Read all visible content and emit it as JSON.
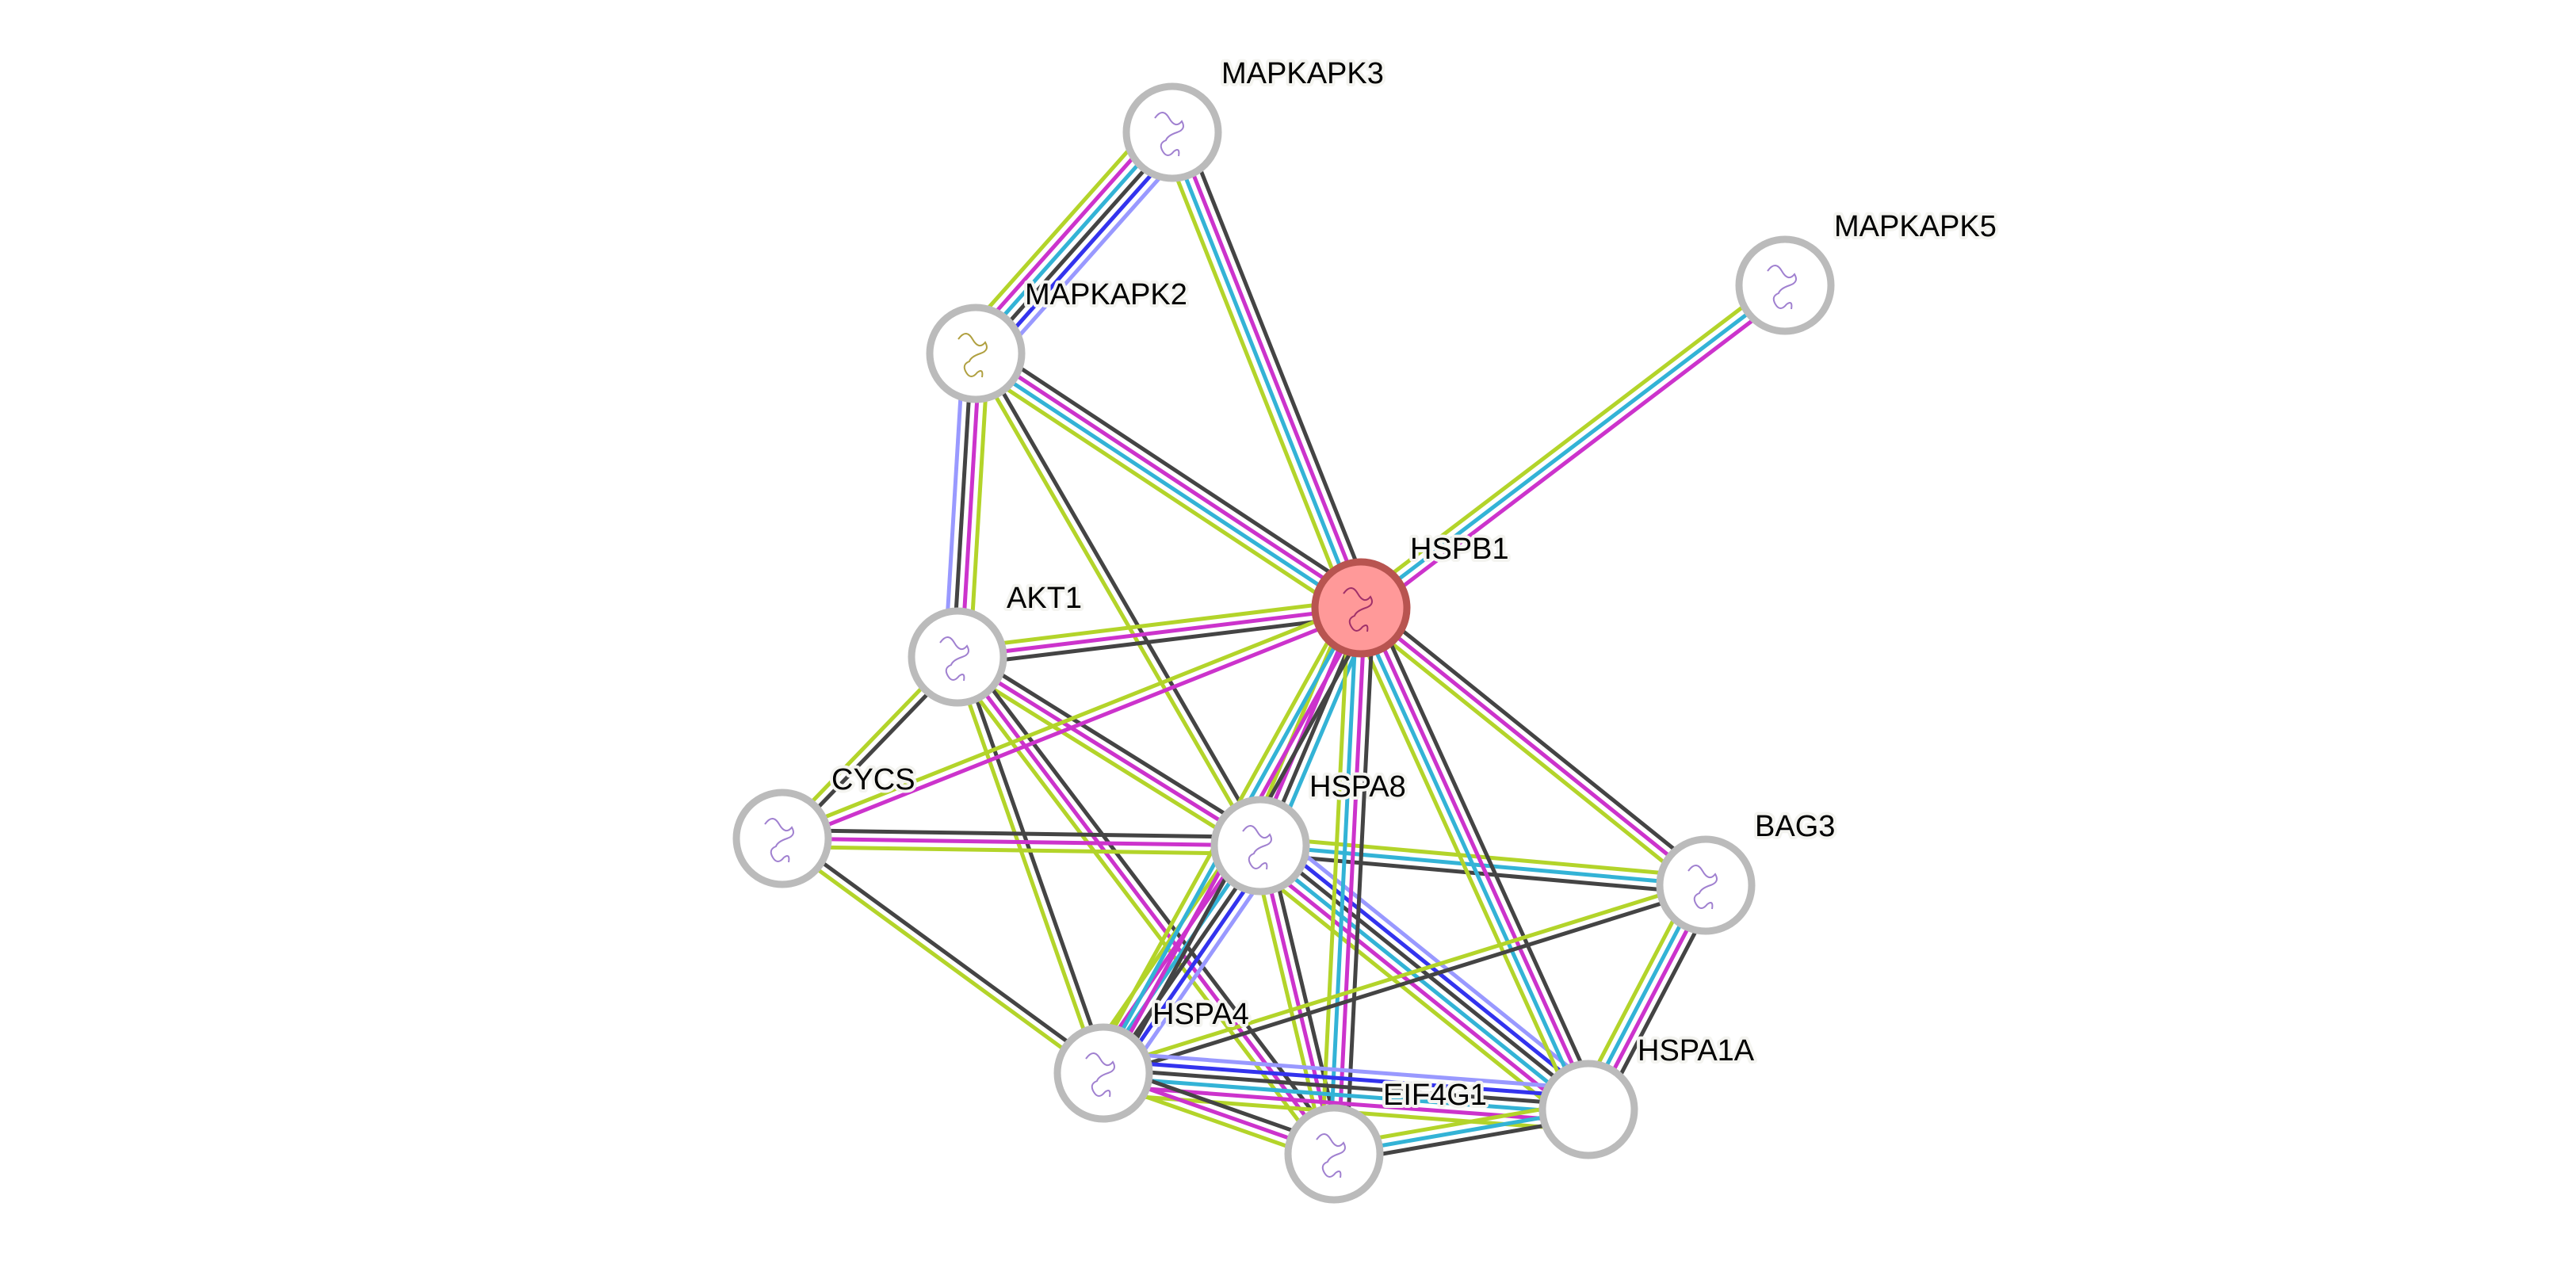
{
  "evidence_colors": {
    "databases": "#33b3d6",
    "experiments": "#cc33cc",
    "textmining": "#b3d42a",
    "coexpression": "#444444",
    "cooccurrence": "#3333ee",
    "homology": "#9999ff"
  },
  "query_node": {
    "fill": "#ff9999",
    "stroke": "#b85450"
  },
  "nodes": [
    {
      "id": "MAPKAPK3"
    },
    {
      "id": "MAPKAPK5"
    },
    {
      "id": "MAPKAPK2"
    },
    {
      "id": "HSPB1",
      "query": true
    },
    {
      "id": "AKT1"
    },
    {
      "id": "CYCS"
    },
    {
      "id": "HSPA8"
    },
    {
      "id": "BAG3"
    },
    {
      "id": "HSPA4"
    },
    {
      "id": "HSPA1A"
    },
    {
      "id": "EIF4G1"
    }
  ],
  "edges": [
    {
      "source": "MAPKAPK3",
      "target": "MAPKAPK2",
      "evidence": [
        "homology",
        "cooccurrence",
        "coexpression",
        "databases",
        "experiments",
        "textmining"
      ]
    },
    {
      "source": "MAPKAPK3",
      "target": "HSPB1",
      "evidence": [
        "coexpression",
        "experiments",
        "databases",
        "textmining"
      ]
    },
    {
      "source": "MAPKAPK5",
      "target": "HSPB1",
      "evidence": [
        "experiments",
        "databases",
        "textmining"
      ]
    },
    {
      "source": "MAPKAPK2",
      "target": "HSPB1",
      "evidence": [
        "coexpression",
        "experiments",
        "databases",
        "textmining"
      ]
    },
    {
      "source": "MAPKAPK2",
      "target": "AKT1",
      "evidence": [
        "textmining",
        "experiments",
        "coexpression",
        "homology"
      ]
    },
    {
      "source": "MAPKAPK2",
      "target": "HSPA8",
      "evidence": [
        "coexpression",
        "textmining"
      ]
    },
    {
      "source": "AKT1",
      "target": "HSPB1",
      "evidence": [
        "textmining",
        "experiments",
        "coexpression"
      ]
    },
    {
      "source": "AKT1",
      "target": "CYCS",
      "evidence": [
        "coexpression",
        "textmining"
      ]
    },
    {
      "source": "AKT1",
      "target": "HSPA8",
      "evidence": [
        "coexpression",
        "experiments",
        "textmining"
      ]
    },
    {
      "source": "AKT1",
      "target": "HSPA4",
      "evidence": [
        "coexpression",
        "textmining"
      ]
    },
    {
      "source": "AKT1",
      "target": "EIF4G1",
      "evidence": [
        "coexpression",
        "experiments",
        "textmining"
      ]
    },
    {
      "source": "CYCS",
      "target": "HSPB1",
      "evidence": [
        "textmining",
        "experiments"
      ]
    },
    {
      "source": "CYCS",
      "target": "HSPA8",
      "evidence": [
        "coexpression",
        "experiments",
        "textmining"
      ]
    },
    {
      "source": "CYCS",
      "target": "HSPA4",
      "evidence": [
        "coexpression",
        "textmining"
      ]
    },
    {
      "source": "HSPA8",
      "target": "HSPB1",
      "evidence": [
        "textmining",
        "experiments",
        "coexpression",
        "databases"
      ]
    },
    {
      "source": "HSPA8",
      "target": "BAG3",
      "evidence": [
        "textmining",
        "databases",
        "coexpression"
      ]
    },
    {
      "source": "HSPA8",
      "target": "HSPA4",
      "evidence": [
        "homology",
        "cooccurrence",
        "coexpression",
        "databases",
        "experiments",
        "textmining"
      ]
    },
    {
      "source": "HSPA8",
      "target": "HSPA1A",
      "evidence": [
        "homology",
        "cooccurrence",
        "coexpression",
        "databases",
        "experiments",
        "textmining"
      ]
    },
    {
      "source": "HSPA8",
      "target": "EIF4G1",
      "evidence": [
        "coexpression",
        "experiments",
        "textmining"
      ]
    },
    {
      "source": "HSPB1",
      "target": "BAG3",
      "evidence": [
        "coexpression",
        "experiments",
        "textmining"
      ]
    },
    {
      "source": "HSPB1",
      "target": "HSPA1A",
      "evidence": [
        "coexpression",
        "experiments",
        "databases",
        "textmining"
      ]
    },
    {
      "source": "HSPB1",
      "target": "EIF4G1",
      "evidence": [
        "coexpression",
        "experiments",
        "databases",
        "textmining"
      ]
    },
    {
      "source": "HSPB1",
      "target": "HSPA4",
      "evidence": [
        "coexpression",
        "experiments",
        "databases",
        "textmining"
      ]
    },
    {
      "source": "BAG3",
      "target": "HSPA4",
      "evidence": [
        "coexpression",
        "textmining"
      ]
    },
    {
      "source": "BAG3",
      "target": "HSPA1A",
      "evidence": [
        "coexpression",
        "experiments",
        "databases",
        "textmining"
      ]
    },
    {
      "source": "HSPA4",
      "target": "HSPA1A",
      "evidence": [
        "homology",
        "cooccurrence",
        "coexpression",
        "databases",
        "experiments",
        "textmining"
      ]
    },
    {
      "source": "HSPA4",
      "target": "EIF4G1",
      "evidence": [
        "coexpression",
        "experiments",
        "textmining"
      ]
    },
    {
      "source": "HSPA1A",
      "target": "EIF4G1",
      "evidence": [
        "coexpression",
        "databases",
        "textmining"
      ]
    }
  ]
}
